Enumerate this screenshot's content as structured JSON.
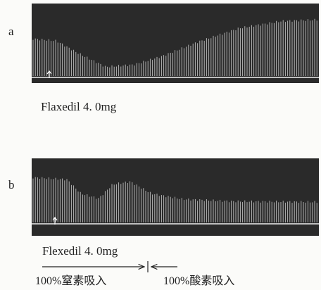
{
  "panels": [
    {
      "label": "a",
      "caption": "Flaxedil 4. 0mg"
    },
    {
      "label": "b",
      "caption": "Flexedil 4. 0mg"
    }
  ],
  "annotations": {
    "left": "100%窒素吸入",
    "right": "100%酸素吸入"
  }
}
